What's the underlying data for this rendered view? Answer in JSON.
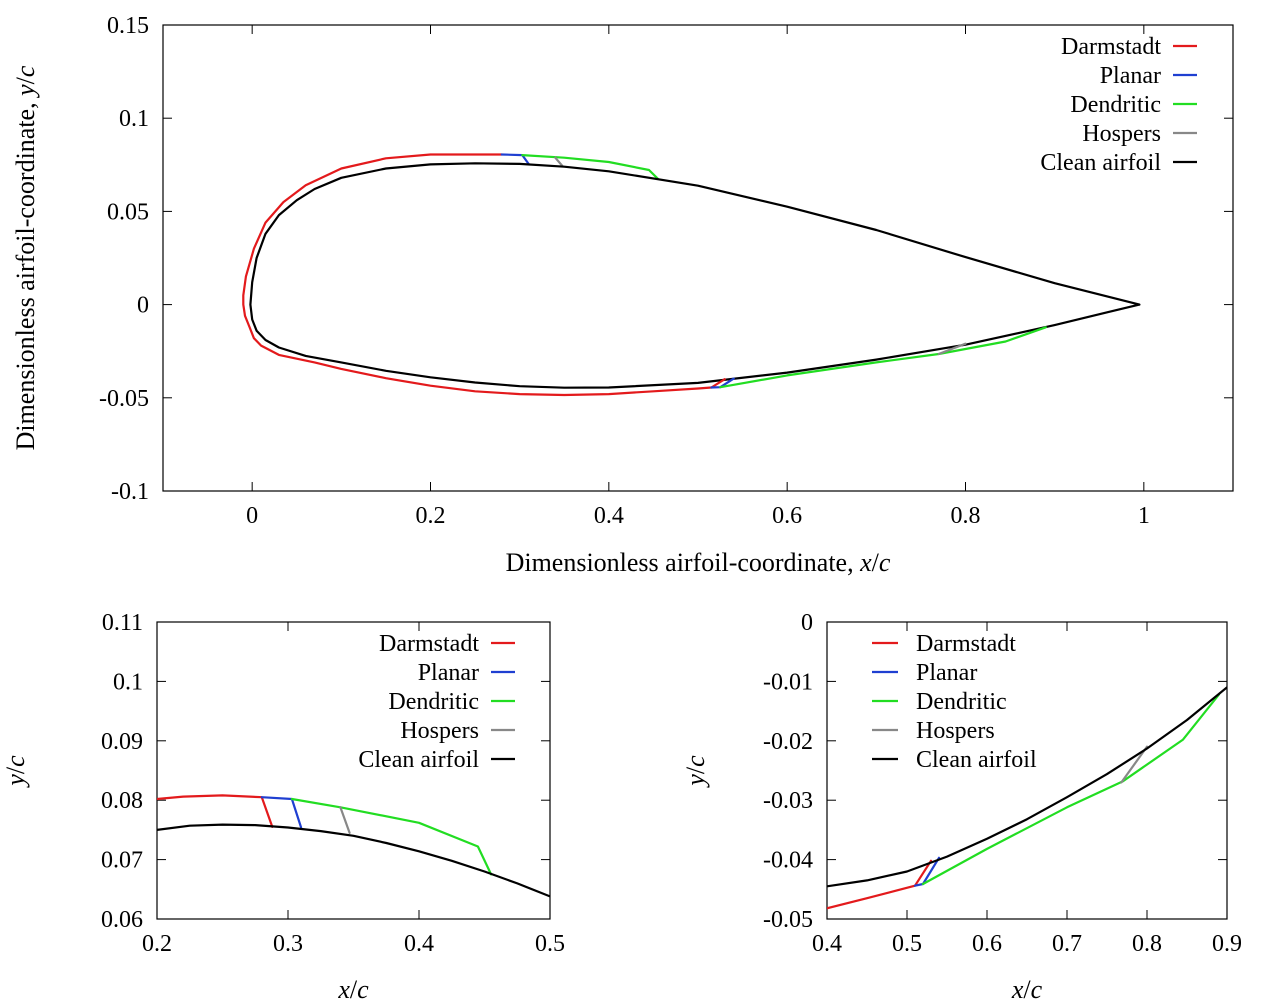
{
  "chart_data": [
    {
      "id": "main",
      "type": "line",
      "xlabel": "Dimensionless airfoil-coordinate, x/c",
      "ylabel": "Dimensionless airfoil-coordinate, y/c",
      "xlim": [
        -0.1,
        1.1
      ],
      "ylim": [
        -0.1,
        0.15
      ],
      "xticks": [
        0,
        0.2,
        0.4,
        0.6,
        0.8,
        1
      ],
      "xtick_labels": [
        "0",
        "0.2",
        "0.4",
        "0.6",
        "0.8",
        "1"
      ],
      "yticks": [
        -0.1,
        -0.05,
        0,
        0.05,
        0.1,
        0.15
      ],
      "ytick_labels": [
        "-0.1",
        "-0.05",
        "0",
        "0.05",
        "0.1",
        "0.15"
      ],
      "legend": {
        "position": "top-right",
        "align": "label-left-of-line"
      },
      "series": [
        {
          "name": "Darmstadt",
          "color": "#e31a1c",
          "points": [
            [
              0.28,
              0.0805
            ],
            [
              0.2,
              0.0805
            ],
            [
              0.15,
              0.0785
            ],
            [
              0.1,
              0.073
            ],
            [
              0.06,
              0.064
            ],
            [
              0.035,
              0.055
            ],
            [
              0.015,
              0.044
            ],
            [
              0.002,
              0.03
            ],
            [
              -0.007,
              0.015
            ],
            [
              -0.01,
              0.005
            ],
            [
              -0.01,
              0
            ],
            [
              -0.008,
              -0.006
            ],
            [
              -0.003,
              -0.012
            ],
            [
              0.002,
              -0.018
            ],
            [
              0.01,
              -0.022
            ],
            [
              0.03,
              -0.027
            ],
            [
              0.07,
              -0.031
            ],
            [
              0.1,
              -0.0345
            ],
            [
              0.15,
              -0.0395
            ],
            [
              0.2,
              -0.0435
            ],
            [
              0.25,
              -0.0465
            ],
            [
              0.3,
              -0.048
            ],
            [
              0.35,
              -0.0485
            ],
            [
              0.4,
              -0.048
            ],
            [
              0.45,
              -0.0465
            ],
            [
              0.5,
              -0.045
            ],
            [
              0.515,
              -0.0445
            ]
          ]
        },
        {
          "name": "Planar",
          "color": "#1f3fd1",
          "points": [
            [
              0.28,
              0.0805
            ],
            [
              0.303,
              0.0802
            ],
            [
              0.31,
              0.0755
            ]
          ]
        },
        {
          "name": "Dendritic",
          "color": "#22dd22",
          "points": [
            [
              0.303,
              0.0802
            ],
            [
              0.35,
              0.0788
            ],
            [
              0.4,
              0.0765
            ],
            [
              0.445,
              0.0722
            ],
            [
              0.455,
              0.0675
            ]
          ]
        },
        {
          "name": "Hospers",
          "color": "#888888",
          "points": [
            [
              0.34,
              0.0788
            ],
            [
              0.348,
              0.0743
            ]
          ]
        },
        {
          "name": "Clean airfoil",
          "color": "#000000",
          "points": [
            [
              0.995,
              0
            ],
            [
              0.9,
              0.0115
            ],
            [
              0.8,
              0.0255
            ],
            [
              0.7,
              0.04
            ],
            [
              0.6,
              0.0525
            ],
            [
              0.5,
              0.0638
            ],
            [
              0.4,
              0.0715
            ],
            [
              0.35,
              0.074
            ],
            [
              0.3,
              0.0755
            ],
            [
              0.25,
              0.0758
            ],
            [
              0.2,
              0.0752
            ],
            [
              0.15,
              0.073
            ],
            [
              0.1,
              0.068
            ],
            [
              0.07,
              0.062
            ],
            [
              0.05,
              0.056
            ],
            [
              0.03,
              0.048
            ],
            [
              0.015,
              0.038
            ],
            [
              0.005,
              0.025
            ],
            [
              0,
              0.012
            ],
            [
              -0.002,
              0
            ],
            [
              0,
              -0.008
            ],
            [
              0.005,
              -0.014
            ],
            [
              0.015,
              -0.019
            ],
            [
              0.03,
              -0.023
            ],
            [
              0.06,
              -0.0275
            ],
            [
              0.1,
              -0.031
            ],
            [
              0.15,
              -0.0355
            ],
            [
              0.2,
              -0.039
            ],
            [
              0.25,
              -0.0418
            ],
            [
              0.3,
              -0.0438
            ],
            [
              0.35,
              -0.0446
            ],
            [
              0.4,
              -0.0445
            ],
            [
              0.5,
              -0.042
            ],
            [
              0.6,
              -0.0365
            ],
            [
              0.7,
              -0.0295
            ],
            [
              0.8,
              -0.0215
            ],
            [
              0.9,
              -0.011
            ],
            [
              0.96,
              -0.004
            ],
            [
              0.995,
              0
            ]
          ]
        },
        {
          "name": "Darmstadt",
          "color": "#e31a1c",
          "legend": false,
          "points": [
            [
              0.515,
              -0.0445
            ],
            [
              0.53,
              -0.04
            ]
          ]
        },
        {
          "name": "Planar",
          "color": "#1f3fd1",
          "legend": false,
          "points": [
            [
              0.515,
              -0.0445
            ],
            [
              0.525,
              -0.0443
            ],
            [
              0.54,
              -0.0397
            ]
          ]
        },
        {
          "name": "Dendritic",
          "color": "#22dd22",
          "legend": false,
          "points": [
            [
              0.525,
              -0.0443
            ],
            [
              0.6,
              -0.038
            ],
            [
              0.7,
              -0.031
            ],
            [
              0.77,
              -0.0265
            ],
            [
              0.845,
              -0.0198
            ],
            [
              0.89,
              -0.0122
            ]
          ]
        },
        {
          "name": "Hospers",
          "color": "#888888",
          "legend": false,
          "points": [
            [
              0.77,
              -0.0265
            ],
            [
              0.8,
              -0.021
            ]
          ]
        }
      ]
    },
    {
      "id": "zoom-upper",
      "type": "line",
      "xlabel": "x/c",
      "ylabel": "y/c",
      "xlim": [
        0.2,
        0.5
      ],
      "ylim": [
        0.06,
        0.11
      ],
      "xticks": [
        0.2,
        0.3,
        0.4,
        0.5
      ],
      "xtick_labels": [
        "0.2",
        "0.3",
        "0.4",
        "0.5"
      ],
      "yticks": [
        0.06,
        0.07,
        0.08,
        0.09,
        0.1,
        0.11
      ],
      "ytick_labels": [
        "0.06",
        "0.07",
        "0.08",
        "0.09",
        "0.1",
        "0.11"
      ],
      "legend": {
        "position": "top-right",
        "align": "label-left-of-line"
      },
      "series": [
        {
          "name": "Darmstadt",
          "color": "#e31a1c",
          "points": [
            [
              0.2,
              0.0802
            ],
            [
              0.22,
              0.0806
            ],
            [
              0.25,
              0.0808
            ],
            [
              0.28,
              0.0805
            ],
            [
              0.288,
              0.0755
            ]
          ]
        },
        {
          "name": "Planar",
          "color": "#1f3fd1",
          "points": [
            [
              0.28,
              0.0805
            ],
            [
              0.303,
              0.0802
            ],
            [
              0.31,
              0.0754
            ]
          ]
        },
        {
          "name": "Dendritic",
          "color": "#22dd22",
          "points": [
            [
              0.303,
              0.0802
            ],
            [
              0.34,
              0.0788
            ],
            [
              0.4,
              0.0762
            ],
            [
              0.445,
              0.0722
            ],
            [
              0.455,
              0.0675
            ]
          ]
        },
        {
          "name": "Hospers",
          "color": "#888888",
          "points": [
            [
              0.34,
              0.0788
            ],
            [
              0.347,
              0.0745
            ]
          ]
        },
        {
          "name": "Clean airfoil",
          "color": "#000000",
          "points": [
            [
              0.2,
              0.075
            ],
            [
              0.225,
              0.0757
            ],
            [
              0.25,
              0.0759
            ],
            [
              0.275,
              0.0758
            ],
            [
              0.3,
              0.0754
            ],
            [
              0.325,
              0.0748
            ],
            [
              0.35,
              0.074
            ],
            [
              0.375,
              0.0728
            ],
            [
              0.4,
              0.0714
            ],
            [
              0.425,
              0.0698
            ],
            [
              0.45,
              0.068
            ],
            [
              0.475,
              0.066
            ],
            [
              0.5,
              0.0638
            ]
          ]
        }
      ]
    },
    {
      "id": "zoom-lower",
      "type": "line",
      "xlabel": "x/c",
      "ylabel": "y/c",
      "xlim": [
        0.4,
        0.9
      ],
      "ylim": [
        -0.05,
        0
      ],
      "xticks": [
        0.4,
        0.5,
        0.6,
        0.7,
        0.8,
        0.9
      ],
      "xtick_labels": [
        "0.4",
        "0.5",
        "0.6",
        "0.7",
        "0.8",
        "0.9"
      ],
      "yticks": [
        -0.05,
        -0.04,
        -0.03,
        -0.02,
        -0.01,
        0
      ],
      "ytick_labels": [
        "-0.05",
        "-0.04",
        "-0.03",
        "-0.02",
        "-0.01",
        "0"
      ],
      "legend": {
        "position": "top-left",
        "align": "line-left-of-label"
      },
      "series": [
        {
          "name": "Darmstadt",
          "color": "#e31a1c",
          "points": [
            [
              0.4,
              -0.0482
            ],
            [
              0.45,
              -0.0465
            ],
            [
              0.51,
              -0.0444
            ],
            [
              0.53,
              -0.0402
            ]
          ]
        },
        {
          "name": "Planar",
          "color": "#1f3fd1",
          "points": [
            [
              0.51,
              -0.0444
            ],
            [
              0.52,
              -0.0441
            ],
            [
              0.54,
              -0.0397
            ]
          ]
        },
        {
          "name": "Dendritic",
          "color": "#22dd22",
          "points": [
            [
              0.52,
              -0.0441
            ],
            [
              0.6,
              -0.0382
            ],
            [
              0.7,
              -0.0312
            ],
            [
              0.77,
              -0.0268
            ],
            [
              0.845,
              -0.0198
            ],
            [
              0.89,
              -0.0122
            ]
          ]
        },
        {
          "name": "Hospers",
          "color": "#888888",
          "points": [
            [
              0.768,
              -0.027
            ],
            [
              0.8,
              -0.021
            ]
          ]
        },
        {
          "name": "Clean airfoil",
          "color": "#000000",
          "points": [
            [
              0.4,
              -0.0445
            ],
            [
              0.45,
              -0.0435
            ],
            [
              0.5,
              -0.042
            ],
            [
              0.55,
              -0.0395
            ],
            [
              0.6,
              -0.0365
            ],
            [
              0.65,
              -0.0332
            ],
            [
              0.7,
              -0.0295
            ],
            [
              0.75,
              -0.0256
            ],
            [
              0.8,
              -0.0213
            ],
            [
              0.85,
              -0.0165
            ],
            [
              0.9,
              -0.011
            ]
          ]
        }
      ]
    }
  ]
}
